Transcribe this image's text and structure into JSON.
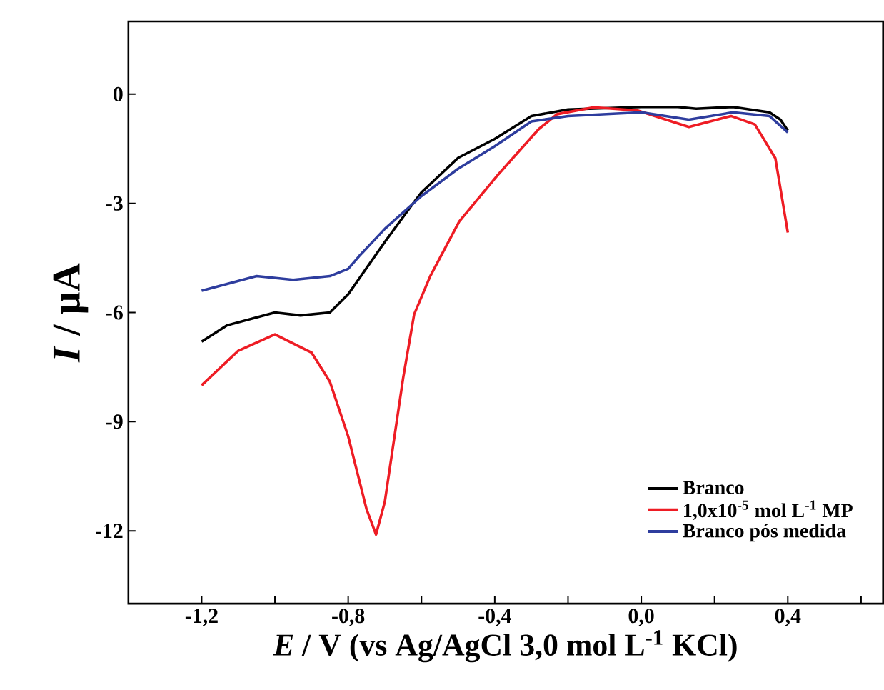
{
  "chart_data": {
    "type": "line",
    "xlabel": "*E* / V (vs Ag/AgCl 3,0 mol L$^{-1}$ KCl)",
    "ylabel": "*I* / µA",
    "xlim": [
      -1.4,
      0.66
    ],
    "ylim": [
      -14,
      2
    ],
    "xticks": [
      {
        "value": -1.2,
        "label": "-1,2"
      },
      {
        "value": -1.0,
        "label": null
      },
      {
        "value": -0.8,
        "label": "-0,8"
      },
      {
        "value": -0.6,
        "label": null
      },
      {
        "value": -0.4,
        "label": "-0,4"
      },
      {
        "value": -0.2,
        "label": null
      },
      {
        "value": 0.0,
        "label": "0,0"
      },
      {
        "value": 0.2,
        "label": null
      },
      {
        "value": 0.4,
        "label": "0,4"
      },
      {
        "value": 0.6,
        "label": null
      }
    ],
    "yticks": [
      0,
      -3,
      -6,
      -9,
      -12
    ],
    "legend": "bottom right",
    "grid": false,
    "marker": "none",
    "line_style": "solid",
    "series": [
      {
        "name": "Branco",
        "color": "#000000",
        "x": [
          -1.2,
          -1.13,
          -1.0,
          -0.93,
          -0.85,
          -0.8,
          -0.7,
          -0.63,
          -0.6,
          -0.5,
          -0.4,
          -0.3,
          -0.2,
          0.0,
          0.1,
          0.15,
          0.25,
          0.35,
          0.38,
          0.4
        ],
        "values": [
          -6.8,
          -6.35,
          -6.0,
          -6.08,
          -6.0,
          -5.5,
          -4.06,
          -3.1,
          -2.7,
          -1.75,
          -1.23,
          -0.6,
          -0.42,
          -0.35,
          -0.35,
          -0.4,
          -0.35,
          -0.5,
          -0.7,
          -1.0
        ]
      },
      {
        "name": "1,0x10$^{-5}$ mol L$^{-1}$ MP",
        "color": "#ee1c24",
        "x": [
          -1.2,
          -1.1,
          -1.0,
          -0.9,
          -0.85,
          -0.8,
          -0.75,
          -0.724,
          -0.7,
          -0.65,
          -0.62,
          -0.576,
          -0.497,
          -0.39,
          -0.28,
          -0.23,
          -0.13,
          -0.01,
          0.13,
          0.245,
          0.31,
          0.366,
          0.4
        ],
        "values": [
          -8.0,
          -7.05,
          -6.6,
          -7.1,
          -7.9,
          -9.4,
          -11.4,
          -12.1,
          -11.2,
          -7.8,
          -6.05,
          -5.0,
          -3.5,
          -2.2,
          -0.96,
          -0.55,
          -0.36,
          -0.45,
          -0.9,
          -0.6,
          -0.83,
          -1.76,
          -3.8
        ]
      },
      {
        "name": "Branco pós medida",
        "color": "#2e3d9e",
        "x": [
          -1.2,
          -1.05,
          -0.95,
          -0.85,
          -0.8,
          -0.77,
          -0.7,
          -0.6,
          -0.5,
          -0.4,
          -0.3,
          -0.2,
          0.0,
          0.13,
          0.25,
          0.35,
          0.4
        ],
        "values": [
          -5.4,
          -5.0,
          -5.1,
          -5.0,
          -4.8,
          -4.45,
          -3.7,
          -2.8,
          -2.05,
          -1.43,
          -0.75,
          -0.6,
          -0.5,
          -0.7,
          -0.5,
          -0.6,
          -1.05
        ]
      }
    ]
  }
}
